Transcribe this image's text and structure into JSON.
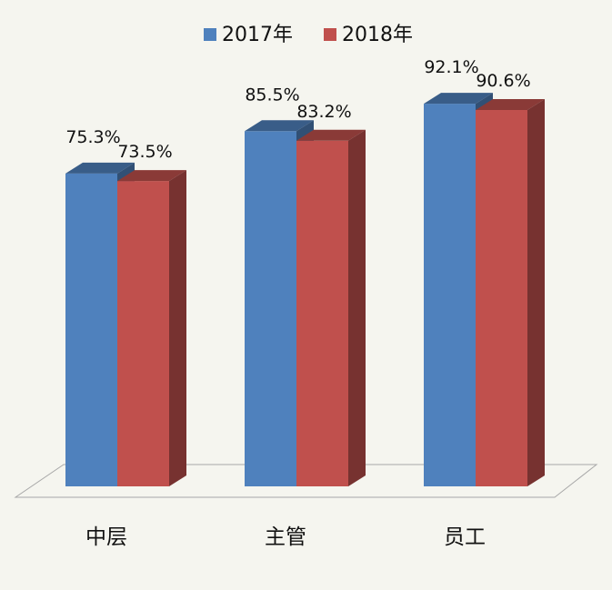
{
  "chart_data": {
    "type": "bar",
    "style": "3d-clustered",
    "categories": [
      "中层",
      "主管",
      "员工"
    ],
    "series": [
      {
        "name": "2017年",
        "values": [
          75.3,
          85.5,
          92.1
        ],
        "labels": [
          "75.3%",
          "85.5%",
          "92.1%"
        ],
        "color": "#4f81bd"
      },
      {
        "name": "2018年",
        "values": [
          73.5,
          83.2,
          90.6
        ],
        "labels": [
          "73.5%",
          "83.2%",
          "90.6%"
        ],
        "color": "#c0504d"
      }
    ],
    "legend_position": "top-center",
    "grid": false,
    "ylim": [
      0,
      100
    ]
  }
}
